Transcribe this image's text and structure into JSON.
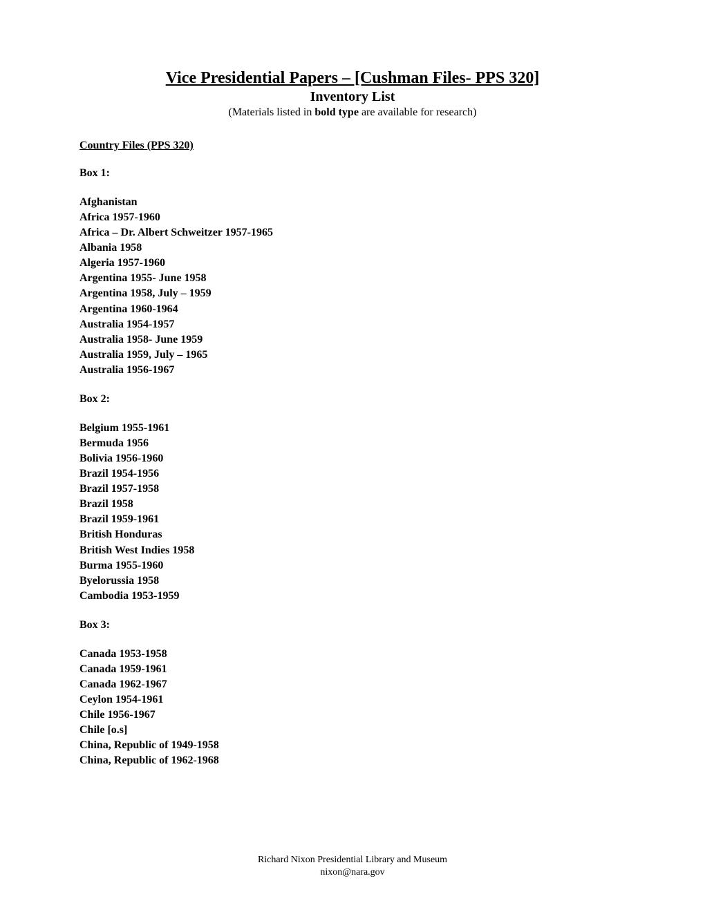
{
  "header": {
    "main_title": "Vice Presidential Papers – [Cushman Files- PPS 320]",
    "subtitle": "Inventory List",
    "note_prefix": "(Materials listed in ",
    "note_bold": "bold type",
    "note_suffix": " are available for research)"
  },
  "section_heading": "Country Files  (PPS 320)",
  "boxes": [
    {
      "label": "Box 1:",
      "entries": [
        "Afghanistan",
        "Africa 1957-1960",
        "Africa – Dr. Albert Schweitzer 1957-1965",
        "Albania 1958",
        "Algeria 1957-1960",
        "Argentina 1955- June 1958",
        "Argentina 1958, July – 1959",
        "Argentina 1960-1964",
        "Australia 1954-1957",
        "Australia 1958- June 1959",
        "Australia 1959, July – 1965",
        "Australia 1956-1967"
      ]
    },
    {
      "label": "Box 2:",
      "entries": [
        "Belgium 1955-1961",
        "Bermuda 1956",
        "Bolivia 1956-1960",
        "Brazil 1954-1956",
        "Brazil 1957-1958",
        "Brazil 1958",
        "Brazil 1959-1961",
        "British Honduras",
        "British West Indies 1958",
        "Burma 1955-1960",
        "Byelorussia 1958",
        "Cambodia 1953-1959"
      ]
    },
    {
      "label": "Box 3:",
      "entries": [
        "Canada 1953-1958",
        "Canada 1959-1961",
        "Canada 1962-1967",
        "Ceylon 1954-1961",
        "Chile 1956-1967",
        "Chile [o.s]",
        "China, Republic of  1949-1958",
        "China, Republic of  1962-1968"
      ]
    }
  ],
  "footer": {
    "line1": "Richard Nixon Presidential Library and Museum",
    "line2": "nixon@nara.gov"
  }
}
